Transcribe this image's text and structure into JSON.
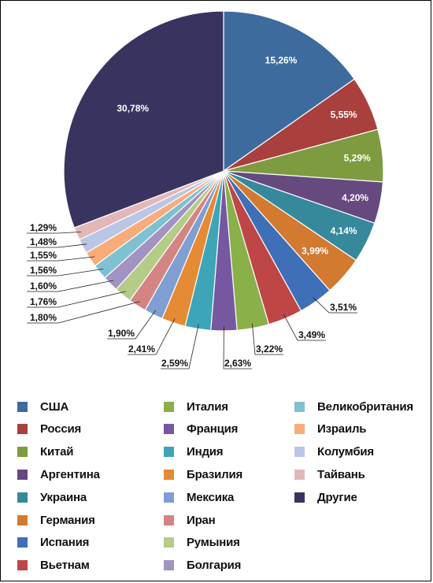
{
  "chart_data": {
    "type": "pie",
    "title": "",
    "start_angle_deg": 0,
    "direction": "clockwise",
    "slices": [
      {
        "name": "США",
        "value": 15.26,
        "label": "15,26%",
        "color": "#3e6b9e"
      },
      {
        "name": "Россия",
        "value": 5.55,
        "label": "5,55%",
        "color": "#a9403d"
      },
      {
        "name": "Китай",
        "value": 5.29,
        "label": "5,29%",
        "color": "#7e9b3f"
      },
      {
        "name": "Аргентина",
        "value": 4.2,
        "label": "4,20%",
        "color": "#65497f"
      },
      {
        "name": "Украина",
        "value": 4.14,
        "label": "4,14%",
        "color": "#35899b"
      },
      {
        "name": "Германия",
        "value": 3.99,
        "label": "3,99%",
        "color": "#d17a30"
      },
      {
        "name": "Испания",
        "value": 3.51,
        "label": "3,51%",
        "color": "#3f6fb6"
      },
      {
        "name": "Вьетнам",
        "value": 3.49,
        "label": "3,49%",
        "color": "#bf4646"
      },
      {
        "name": "Италия",
        "value": 3.22,
        "label": "3,22%",
        "color": "#8ab04a"
      },
      {
        "name": "Франция",
        "value": 2.63,
        "label": "2,63%",
        "color": "#7658a0"
      },
      {
        "name": "Индия",
        "value": 2.59,
        "label": "2,59%",
        "color": "#3ea4b8"
      },
      {
        "name": "Бразилия",
        "value": 2.41,
        "label": "2,41%",
        "color": "#e58a35"
      },
      {
        "name": "Мексика",
        "value": 1.9,
        "label": "1,90%",
        "color": "#7f9fd3"
      },
      {
        "name": "Иран",
        "value": 1.8,
        "label": "1,80%",
        "color": "#d48583"
      },
      {
        "name": "Румыния",
        "value": 1.76,
        "label": "1,76%",
        "color": "#b4cc87"
      },
      {
        "name": "Болгария",
        "value": 1.6,
        "label": "1,60%",
        "color": "#a293c2"
      },
      {
        "name": "Великобритания",
        "value": 1.56,
        "label": "1,56%",
        "color": "#80c1d1"
      },
      {
        "name": "Израиль",
        "value": 1.55,
        "label": "1,55%",
        "color": "#f8ac7a"
      },
      {
        "name": "Колумбия",
        "value": 1.48,
        "label": "1,48%",
        "color": "#b9c6e6"
      },
      {
        "name": "Тайвань",
        "value": 1.29,
        "label": "1,29%",
        "color": "#e2b7b8"
      },
      {
        "name": "Другие",
        "value": 30.78,
        "label": "30,78%",
        "color": "#38335f"
      }
    ],
    "legend": {
      "placement": "bottom",
      "columns": [
        [
          "США",
          "Россия",
          "Китай",
          "Аргентина",
          "Украина",
          "Германия",
          "Испания",
          "Вьетнам"
        ],
        [
          "Италия",
          "Франция",
          "Индия",
          "Бразилия",
          "Мексика",
          "Иран",
          "Румыния",
          "Болгария"
        ],
        [
          "Великобритания",
          "Израиль",
          "Колумбия",
          "Тайвань",
          "Другие"
        ]
      ]
    }
  }
}
